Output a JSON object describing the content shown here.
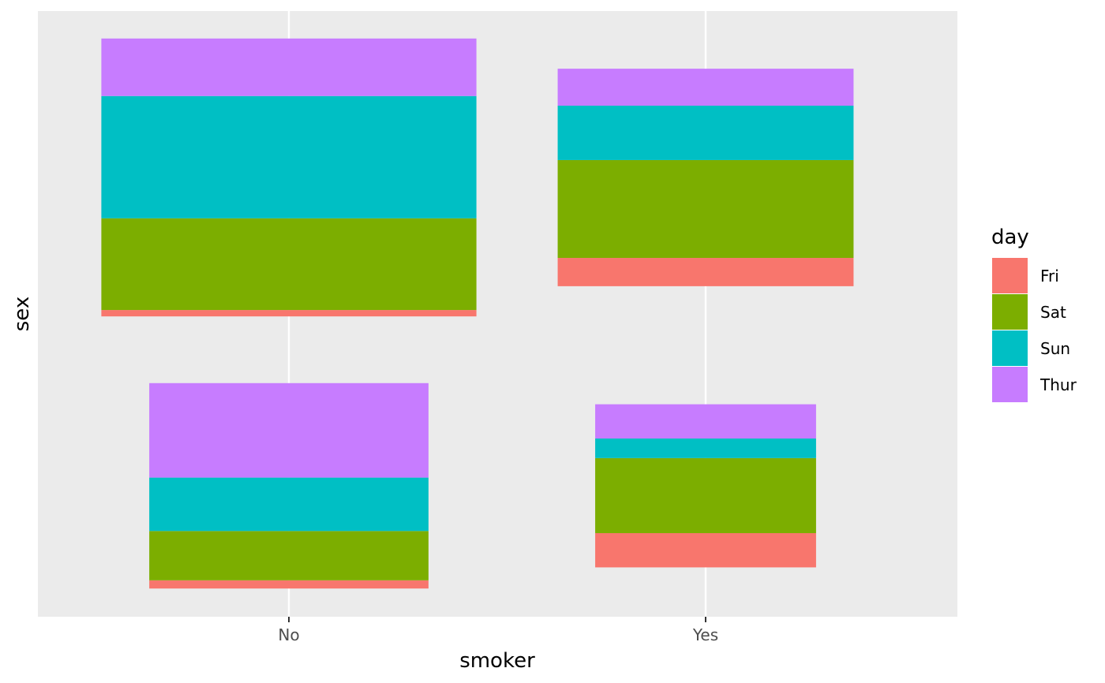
{
  "chart_data": {
    "type": "mosaic",
    "xlabel": "smoker",
    "ylabel": "sex",
    "x_categories": [
      "No",
      "Yes"
    ],
    "x_tick_labels": [
      "No",
      "Yes"
    ],
    "y_tick_labels": [],
    "grid": true,
    "background": "#ebebeb",
    "legend": {
      "title": "day",
      "position": "right",
      "items": [
        {
          "label": "Fri",
          "color": "#F8766D"
        },
        {
          "label": "Sat",
          "color": "#7CAE00"
        },
        {
          "label": "Sun",
          "color": "#00BFC4"
        },
        {
          "label": "Thur",
          "color": "#C77CFF"
        }
      ]
    },
    "cells": [
      {
        "smoker": "No",
        "row": "top",
        "width_fraction": 0.9,
        "height_fraction": 0.46,
        "segments": [
          {
            "day": "Fri",
            "fraction": 0.023
          },
          {
            "day": "Sat",
            "fraction": 0.33
          },
          {
            "day": "Sun",
            "fraction": 0.44
          },
          {
            "day": "Thur",
            "fraction": 0.207
          }
        ]
      },
      {
        "smoker": "No",
        "row": "bottom",
        "width_fraction": 0.67,
        "height_fraction": 0.34,
        "segments": [
          {
            "day": "Fri",
            "fraction": 0.04
          },
          {
            "day": "Sat",
            "fraction": 0.24
          },
          {
            "day": "Sun",
            "fraction": 0.26
          },
          {
            "day": "Thur",
            "fraction": 0.46
          }
        ]
      },
      {
        "smoker": "Yes",
        "row": "top",
        "width_fraction": 0.71,
        "height_fraction": 0.36,
        "segments": [
          {
            "day": "Fri",
            "fraction": 0.13
          },
          {
            "day": "Sat",
            "fraction": 0.45
          },
          {
            "day": "Sun",
            "fraction": 0.25
          },
          {
            "day": "Thur",
            "fraction": 0.17
          }
        ]
      },
      {
        "smoker": "Yes",
        "row": "bottom",
        "width_fraction": 0.53,
        "height_fraction": 0.27,
        "segments": [
          {
            "day": "Fri",
            "fraction": 0.21
          },
          {
            "day": "Sat",
            "fraction": 0.46
          },
          {
            "day": "Sun",
            "fraction": 0.12
          },
          {
            "day": "Thur",
            "fraction": 0.21
          }
        ]
      }
    ]
  }
}
